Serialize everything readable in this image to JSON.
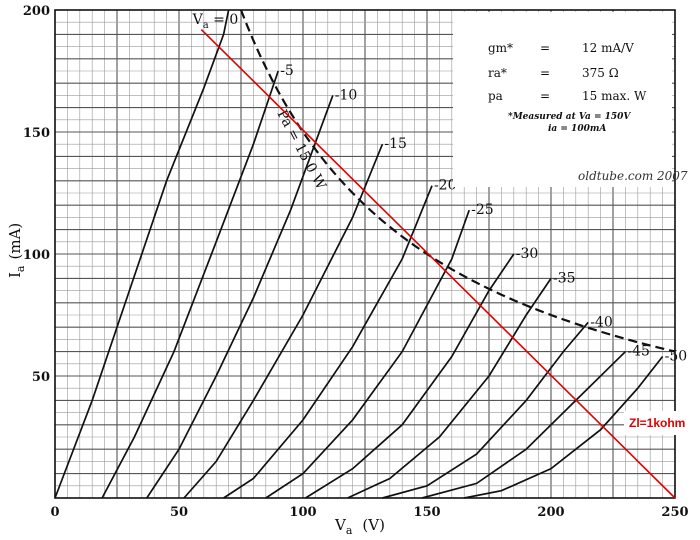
{
  "chart_data": {
    "type": "line",
    "x_axis": {
      "range": [
        0,
        250
      ],
      "ticks": [
        "0",
        "50",
        "100",
        "150",
        "200",
        "250"
      ]
    },
    "y_axis": {
      "range": [
        0,
        200
      ],
      "ticks": [
        "50",
        "100",
        "150",
        "200"
      ]
    },
    "xlabel": {
      "main": "V",
      "sub": "a",
      "unit": "(V)"
    },
    "ylabel": {
      "main": "I",
      "sub": "a",
      "unit": "(mA)"
    },
    "grid": true,
    "series": [
      {
        "name": "Va=0",
        "label_main": "V",
        "label_sub": "a",
        "label_rest": "= 0",
        "points": [
          [
            0,
            0
          ],
          [
            15,
            40
          ],
          [
            30,
            85
          ],
          [
            45,
            130
          ],
          [
            60,
            168
          ],
          [
            68,
            190
          ],
          [
            70,
            200
          ]
        ]
      },
      {
        "name": "-5",
        "points": [
          [
            19,
            0
          ],
          [
            32,
            25
          ],
          [
            48,
            60
          ],
          [
            65,
            105
          ],
          [
            80,
            145
          ],
          [
            90,
            175
          ]
        ]
      },
      {
        "name": "-10",
        "points": [
          [
            37,
            0
          ],
          [
            50,
            20
          ],
          [
            65,
            50
          ],
          [
            80,
            82
          ],
          [
            95,
            118
          ],
          [
            112,
            165
          ]
        ]
      },
      {
        "name": "-15",
        "points": [
          [
            52,
            0
          ],
          [
            65,
            15
          ],
          [
            80,
            40
          ],
          [
            100,
            75
          ],
          [
            120,
            115
          ],
          [
            132,
            145
          ]
        ]
      },
      {
        "name": "-20",
        "points": [
          [
            68,
            0
          ],
          [
            80,
            8
          ],
          [
            100,
            32
          ],
          [
            120,
            62
          ],
          [
            140,
            98
          ],
          [
            152,
            128
          ]
        ]
      },
      {
        "name": "-25",
        "points": [
          [
            85,
            0
          ],
          [
            100,
            10
          ],
          [
            120,
            32
          ],
          [
            140,
            60
          ],
          [
            160,
            98
          ],
          [
            167,
            118
          ]
        ]
      },
      {
        "name": "-30",
        "points": [
          [
            101,
            0
          ],
          [
            120,
            12
          ],
          [
            140,
            30
          ],
          [
            160,
            58
          ],
          [
            175,
            85
          ],
          [
            185,
            100
          ]
        ]
      },
      {
        "name": "-35",
        "points": [
          [
            118,
            0
          ],
          [
            135,
            8
          ],
          [
            155,
            25
          ],
          [
            175,
            50
          ],
          [
            190,
            75
          ],
          [
            200,
            90
          ]
        ]
      },
      {
        "name": "-40",
        "points": [
          [
            132,
            0
          ],
          [
            150,
            5
          ],
          [
            170,
            18
          ],
          [
            190,
            40
          ],
          [
            205,
            60
          ],
          [
            215,
            72
          ]
        ]
      },
      {
        "name": "-45",
        "points": [
          [
            148,
            0
          ],
          [
            170,
            6
          ],
          [
            190,
            20
          ],
          [
            210,
            40
          ],
          [
            225,
            55
          ],
          [
            230,
            60
          ]
        ]
      },
      {
        "name": "-50",
        "points": [
          [
            165,
            0
          ],
          [
            180,
            3
          ],
          [
            200,
            12
          ],
          [
            220,
            28
          ],
          [
            235,
            45
          ],
          [
            245,
            58
          ]
        ]
      }
    ],
    "max_dissipation": {
      "name": "Pa = 15·0 W",
      "watts": 15
    },
    "load_line": {
      "name": "Zl=1kohm",
      "color": "#e00000",
      "points": [
        [
          59,
          192
        ],
        [
          250,
          0
        ]
      ]
    },
    "info_box": {
      "rows": [
        {
          "param": "gm*",
          "eq": "=",
          "value": "12 mA/V"
        },
        {
          "param": "ra*",
          "eq": "=",
          "value": "375 Ω"
        },
        {
          "param": "pa",
          "eq": "=",
          "value": "15 max. W"
        }
      ],
      "note1": "*Measured at Va = 150V",
      "note2": "ia = 100mA"
    },
    "watermark": "oldtube.com  2007"
  }
}
